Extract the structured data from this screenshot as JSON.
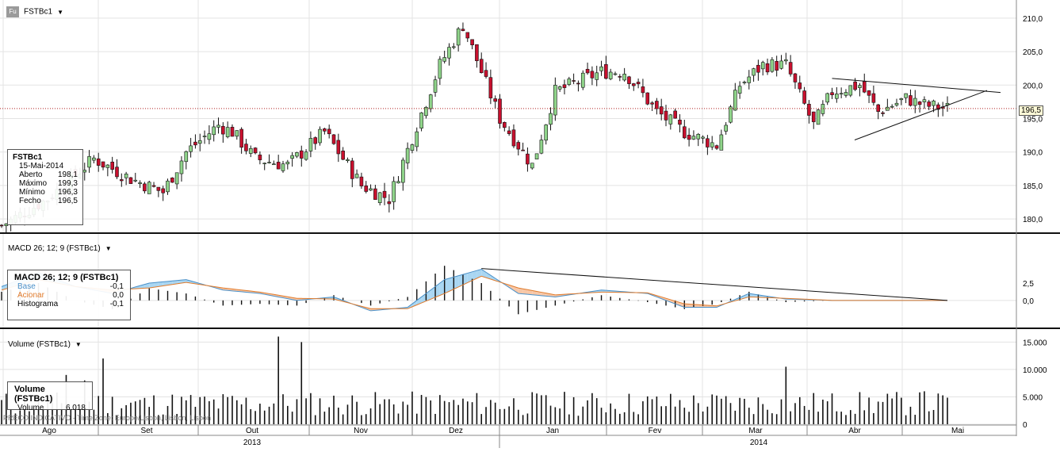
{
  "header": {
    "icon_label": "Fu",
    "symbol": "FSTBc1"
  },
  "info_price": {
    "title": "FSTBc1",
    "date": "15-Mai-2014",
    "rows": [
      {
        "label": "Aberto",
        "value": "198,1"
      },
      {
        "label": "Máximo",
        "value": "199,3"
      },
      {
        "label": "Mínimo",
        "value": "196,3"
      },
      {
        "label": "Fecho",
        "value": "196,5"
      }
    ]
  },
  "macd": {
    "title": "MACD 26; 12; 9 (FSTBc1)",
    "box_title": "MACD 26; 12; 9 (FSTBc1)",
    "rows": [
      {
        "label": "Base",
        "value": "-0,1"
      },
      {
        "label": "Acionar",
        "value": "0,0"
      },
      {
        "label": "Histograma",
        "value": "-0,1"
      }
    ],
    "base_color": "#4a90c8",
    "signal_color": "#e07b2c"
  },
  "volume": {
    "title": "Volume (FSTBc1)",
    "box_title": "Volume (FSTBc1)",
    "row": {
      "label": "Volume",
      "value": "6.018"
    }
  },
  "current_price_label": "196,5",
  "footer_text": "PREÇO INDICATIVO - Time Zone: Europe/Lisbon, Lisbon, Lisbon",
  "months": [
    "Ago",
    "Set",
    "Out",
    "Nov",
    "Dez",
    "Jan",
    "Fev",
    "Mar",
    "Abr",
    "Mai"
  ],
  "years": [
    "2013",
    "2014"
  ],
  "colors": {
    "up": "#8fd48a",
    "down": "#c8102e",
    "grid": "#e3e3e3"
  },
  "chart_data": [
    {
      "type": "candlestick",
      "series": "FSTBc1",
      "ylim": [
        178,
        212
      ],
      "yticks": [
        "180,0",
        "185,0",
        "190,0",
        "195,0",
        "200,0",
        "205,0",
        "210,0"
      ],
      "x": [
        "2013-08",
        "2013-09",
        "2013-10",
        "2013-11",
        "2013-12",
        "2014-01",
        "2014-02",
        "2014-03",
        "2014-04",
        "2014-05"
      ],
      "close_path": [
        [
          0,
          179
        ],
        [
          10,
          183
        ],
        [
          20,
          189
        ],
        [
          28,
          186
        ],
        [
          35,
          184
        ],
        [
          40,
          190
        ],
        [
          47,
          194
        ],
        [
          50,
          193
        ],
        [
          55,
          189
        ],
        [
          62,
          188
        ],
        [
          70,
          193
        ],
        [
          78,
          185
        ],
        [
          84,
          183
        ],
        [
          90,
          194
        ],
        [
          95,
          203
        ],
        [
          100,
          209
        ],
        [
          104,
          202
        ],
        [
          108,
          195
        ],
        [
          115,
          188
        ],
        [
          120,
          199
        ],
        [
          130,
          202
        ],
        [
          135,
          202
        ],
        [
          142,
          196
        ],
        [
          148,
          193
        ],
        [
          155,
          191
        ],
        [
          160,
          200
        ],
        [
          165,
          203
        ],
        [
          170,
          203
        ],
        [
          176,
          194
        ],
        [
          180,
          199
        ],
        [
          186,
          200
        ],
        [
          190,
          196
        ],
        [
          196,
          198
        ],
        [
          200,
          197
        ],
        [
          205,
          196.5
        ]
      ],
      "current": 196.5
    },
    {
      "type": "line",
      "series": "MACD",
      "ylim": [
        -4,
        9
      ],
      "yticks": [
        "0,0",
        "2,5"
      ],
      "x": [
        "2013-08",
        "2013-09",
        "2013-10",
        "2013-11",
        "2013-12",
        "2014-01",
        "2014-02",
        "2014-03",
        "2014-04",
        "2014-05"
      ],
      "base": [
        [
          0,
          2
        ],
        [
          8,
          4
        ],
        [
          16,
          2
        ],
        [
          24,
          1
        ],
        [
          32,
          2.5
        ],
        [
          40,
          3
        ],
        [
          48,
          1.5
        ],
        [
          56,
          1
        ],
        [
          64,
          0
        ],
        [
          72,
          0.5
        ],
        [
          80,
          -1.5
        ],
        [
          88,
          -1
        ],
        [
          96,
          3
        ],
        [
          104,
          4.5
        ],
        [
          112,
          1
        ],
        [
          120,
          0.5
        ],
        [
          130,
          1.5
        ],
        [
          140,
          1
        ],
        [
          148,
          -1
        ],
        [
          155,
          -1
        ],
        [
          162,
          1
        ],
        [
          170,
          0.2
        ],
        [
          180,
          0
        ],
        [
          200,
          0
        ]
      ],
      "signal": [
        [
          0,
          1.5
        ],
        [
          8,
          3
        ],
        [
          16,
          2
        ],
        [
          24,
          1.5
        ],
        [
          32,
          1.8
        ],
        [
          40,
          2.6
        ],
        [
          48,
          1.8
        ],
        [
          56,
          1.2
        ],
        [
          64,
          0.3
        ],
        [
          72,
          0.2
        ],
        [
          80,
          -1.2
        ],
        [
          88,
          -1.2
        ],
        [
          96,
          1
        ],
        [
          104,
          3.5
        ],
        [
          112,
          1.8
        ],
        [
          120,
          0.8
        ],
        [
          130,
          1.2
        ],
        [
          140,
          1.1
        ],
        [
          148,
          -0.5
        ],
        [
          155,
          -0.8
        ],
        [
          162,
          0.5
        ],
        [
          170,
          0.3
        ],
        [
          180,
          0
        ],
        [
          200,
          0
        ]
      ]
    },
    {
      "type": "bar",
      "series": "Volume",
      "ylim": [
        0,
        16500
      ],
      "yticks": [
        "0",
        "5.000",
        "10.000",
        "15.000"
      ],
      "x": [
        "2013-08",
        "2013-09",
        "2013-10",
        "2013-11",
        "2013-12",
        "2014-01",
        "2014-02",
        "2014-03",
        "2014-04",
        "2014-05"
      ],
      "spikes": [
        [
          14,
          9000
        ],
        [
          18,
          8000
        ],
        [
          22,
          12000
        ],
        [
          60,
          16000
        ],
        [
          65,
          15000
        ],
        [
          170,
          10500
        ],
        [
          200,
          6018
        ]
      ]
    }
  ]
}
